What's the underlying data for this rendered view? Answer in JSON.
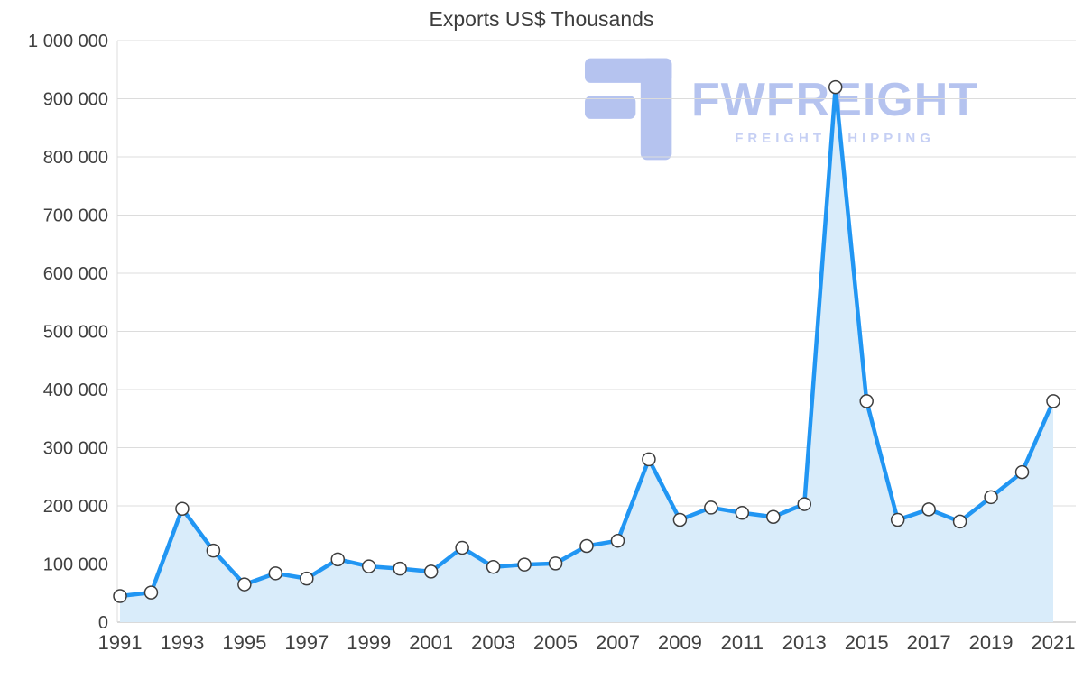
{
  "chart_data": {
    "type": "area",
    "title": "Exports US$ Thousands",
    "x": [
      1991,
      1992,
      1993,
      1994,
      1995,
      1996,
      1997,
      1998,
      1999,
      2000,
      2001,
      2002,
      2003,
      2004,
      2005,
      2006,
      2007,
      2008,
      2009,
      2010,
      2011,
      2012,
      2013,
      2014,
      2015,
      2016,
      2017,
      2018,
      2019,
      2020,
      2021
    ],
    "values": [
      45000,
      51000,
      195000,
      123000,
      65000,
      84000,
      75000,
      108000,
      96000,
      92000,
      87000,
      128000,
      95000,
      99000,
      101000,
      131000,
      140000,
      280000,
      176000,
      197000,
      188000,
      181000,
      203000,
      920000,
      380000,
      176000,
      194000,
      173000,
      215000,
      258000,
      380000
    ],
    "ylim": [
      0,
      1000000
    ],
    "ytick_step": 100000,
    "ytick_labels": [
      "0",
      "100 000",
      "200 000",
      "300 000",
      "400 000",
      "500 000",
      "600 000",
      "700 000",
      "800 000",
      "900 000",
      "1 000 000"
    ],
    "xtick_labels": [
      "1991",
      "1993",
      "1995",
      "1997",
      "1999",
      "2001",
      "2003",
      "2005",
      "2007",
      "2009",
      "2011",
      "2013",
      "2015",
      "2017",
      "2019",
      "2021"
    ],
    "grid": true,
    "legend": "none",
    "colors": {
      "line": "#2196f3",
      "fill": "#d9ecfa",
      "gridline": "#dcdcdc",
      "axis_line": "#b5b5b5",
      "tick_text": "#404040",
      "marker_fill": "#ffffff",
      "marker_stroke": "#3d3d3d"
    }
  },
  "watermark": {
    "brand": "FWFREIGHT",
    "tagline": "FREIGHT SHIPPING",
    "brand_color": "#aebdee",
    "tagline_color": "#bfcaf3",
    "logo_color": "#aebdee"
  }
}
